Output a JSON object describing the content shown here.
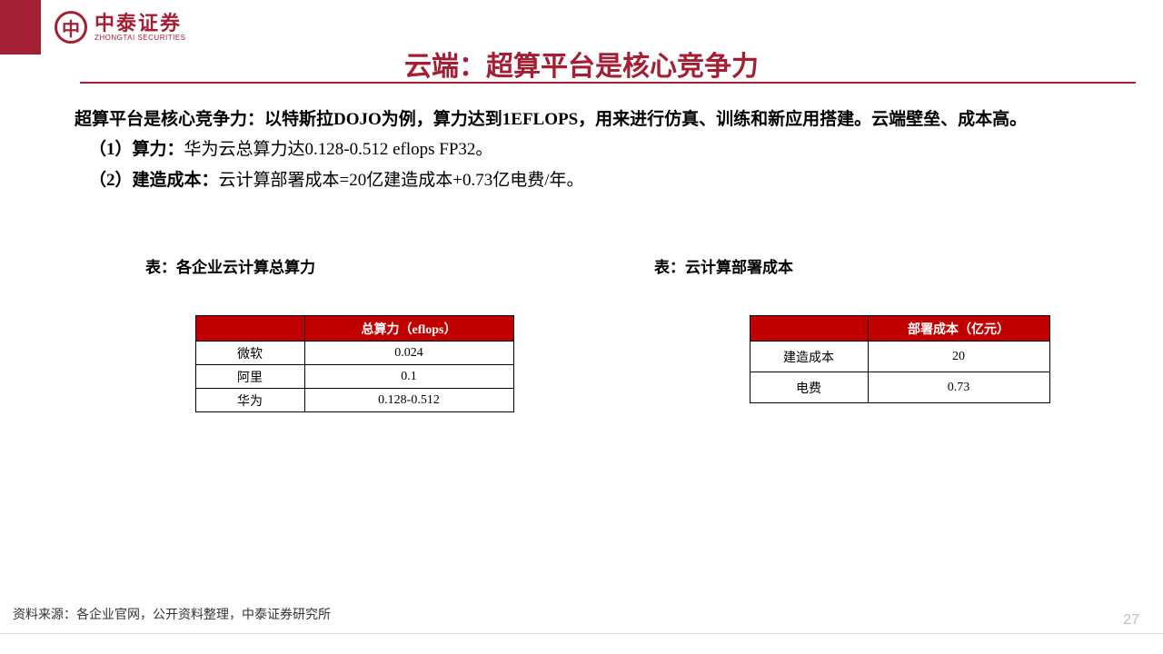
{
  "brand": {
    "cn": "中泰证券",
    "en": "ZHONGTAI SECURITIES",
    "accent_color": "#a31f34",
    "header_bg": "#c00000"
  },
  "title": "云端：超算平台是核心竞争力",
  "body": {
    "line1_bold": "超算平台是核心竞争力：以特斯拉DOJO为例，算力达到1EFLOPS，用来进行仿真、训练和新应用搭建。云端壁垒、成本高。",
    "line2_bold": "（1）算力：",
    "line2_rest": "华为云总算力达0.128-0.512 eflops FP32。",
    "line3_bold": "（2）建造成本：",
    "line3_rest": "云计算部署成本=20亿建造成本+0.73亿电费/年。"
  },
  "table1": {
    "caption": "表：各企业云计算总算力",
    "header_blank": "",
    "header_col": "总算力（eflops）",
    "rows": [
      {
        "label": "微软",
        "value": "0.024"
      },
      {
        "label": "阿里",
        "value": "0.1"
      },
      {
        "label": "华为",
        "value": "0.128-0.512"
      }
    ]
  },
  "table2": {
    "caption": "表：云计算部署成本",
    "header_blank": "",
    "header_col": "部署成本（亿元）",
    "rows": [
      {
        "label": "建造成本",
        "value": "20"
      },
      {
        "label": "电费",
        "value": "0.73"
      }
    ]
  },
  "footer": {
    "source": "资料来源：各企业官网，公开资料整理，中泰证券研究所",
    "page": "27"
  }
}
